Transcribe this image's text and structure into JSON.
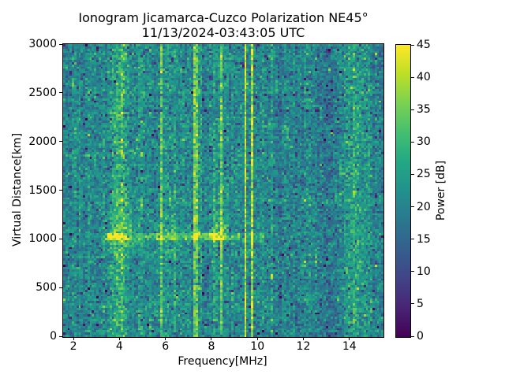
{
  "chart_data": {
    "type": "heatmap",
    "title": "Ionogram Jicamarca-Cuzco Polarization NE45°",
    "subtitle": "11/13/2024-03:43:05 UTC",
    "xlabel": "Frequency[MHz]",
    "ylabel": "Virtual Distance[km]",
    "x_range_mhz": [
      1.55,
      15.45
    ],
    "y_range_km": [
      0,
      3000
    ],
    "x_ticks": [
      2,
      4,
      6,
      8,
      10,
      12,
      14
    ],
    "y_ticks": [
      0,
      500,
      1000,
      1500,
      2000,
      2500,
      3000
    ],
    "colorbar": {
      "label": "Power [dB]",
      "range_db": [
        0,
        45
      ],
      "ticks": [
        0,
        5,
        10,
        15,
        20,
        25,
        30,
        35,
        40,
        45
      ],
      "colormap": "viridis",
      "colormap_stops": [
        [
          0.0,
          "#440154"
        ],
        [
          0.1,
          "#482475"
        ],
        [
          0.2,
          "#414487"
        ],
        [
          0.3,
          "#355f8d"
        ],
        [
          0.4,
          "#2a788e"
        ],
        [
          0.5,
          "#21918c"
        ],
        [
          0.6,
          "#22a884"
        ],
        [
          0.7,
          "#44bf70"
        ],
        [
          0.8,
          "#7ad151"
        ],
        [
          0.9,
          "#bddf26"
        ],
        [
          1.0,
          "#fde725"
        ]
      ]
    },
    "render_hints": {
      "grid_cols": 145,
      "grid_rows": 130,
      "legend_position": "right",
      "grid": "off"
    },
    "background_noise": {
      "mean_db": 21,
      "std_db": 4.2,
      "dark_speckle_prob": 0.05,
      "bright_speckle_prob": 0.012
    },
    "interference_lines_mhz": [
      {
        "f": 2.05,
        "boost_db": 3,
        "solid": false
      },
      {
        "f": 2.3,
        "boost_db": 3.5,
        "solid": false
      },
      {
        "f": 2.68,
        "boost_db": 4.5,
        "solid": false
      },
      {
        "f": 3.35,
        "boost_db": 4,
        "solid": false
      },
      {
        "f": 4.05,
        "boost_db": 4,
        "solid": false
      },
      {
        "f": 4.9,
        "boost_db": 5,
        "solid": false
      },
      {
        "f": 5.3,
        "boost_db": 3,
        "solid": false
      },
      {
        "f": 5.85,
        "boost_db": 10,
        "solid": true
      },
      {
        "f": 6.38,
        "boost_db": 4.5,
        "solid": false
      },
      {
        "f": 7.3,
        "boost_db": 15,
        "solid": true
      },
      {
        "f": 7.5,
        "boost_db": 7,
        "solid": false
      },
      {
        "f": 8.12,
        "boost_db": 6,
        "solid": false
      },
      {
        "f": 8.42,
        "boost_db": 14,
        "solid": true
      },
      {
        "f": 8.85,
        "boost_db": 5,
        "solid": false
      },
      {
        "f": 9.42,
        "boost_db": 20,
        "solid": true
      },
      {
        "f": 9.72,
        "boost_db": 19,
        "solid": true
      },
      {
        "f": 10.2,
        "boost_db": 3,
        "solid": false
      },
      {
        "f": 10.62,
        "boost_db": 6,
        "solid": false
      },
      {
        "f": 11.2,
        "boost_db": 3,
        "solid": false
      },
      {
        "f": 14.85,
        "boost_db": 3,
        "solid": false
      }
    ],
    "bright_bands_mhz": [
      {
        "center": 4.0,
        "sigma": 0.25,
        "boost_db": 9
      },
      {
        "center": 5.95,
        "sigma": 0.18,
        "boost_db": 5
      },
      {
        "center": 8.3,
        "sigma": 0.35,
        "boost_db": 2.5
      },
      {
        "center": 14.1,
        "sigma": 0.26,
        "boost_db": 6.5
      }
    ],
    "dark_regions_mhz": [
      {
        "f0": 1.55,
        "f1": 1.85,
        "delta_db": -1.5
      },
      {
        "f0": 10.9,
        "f1": 12.25,
        "delta_db": -1.2
      },
      {
        "f0": 12.25,
        "f1": 13.8,
        "delta_db": -2.6
      },
      {
        "f0": 14.55,
        "f1": 15.45,
        "delta_db": -0.8
      }
    ],
    "echo_trace": {
      "altitude_km": 1030,
      "half_width_km": 28,
      "f0_mhz": 3.0,
      "f1_mhz": 10.3,
      "boost_db": 7,
      "blobs": [
        {
          "f0": 3.4,
          "f1": 4.35,
          "boost_db": 15
        },
        {
          "f0": 4.35,
          "f1": 5.55,
          "boost_db": 4
        },
        {
          "f0": 5.55,
          "f1": 6.15,
          "boost_db": 9
        },
        {
          "f0": 6.15,
          "f1": 7.85,
          "boost_db": 5
        },
        {
          "f0": 7.85,
          "f1": 8.65,
          "boost_db": 15
        },
        {
          "f0": 8.65,
          "f1": 9.3,
          "boost_db": 4
        }
      ]
    },
    "spread_plumes": [
      {
        "f0": 3.6,
        "f1": 4.5,
        "alt0_km": 1060,
        "alt1_km": 1600,
        "origin_km": 1060,
        "decay_km": 260,
        "boost_db": 7
      },
      {
        "f0": 5.65,
        "f1": 6.5,
        "alt0_km": 1060,
        "alt1_km": 1420,
        "origin_km": 1060,
        "decay_km": 200,
        "boost_db": 5
      },
      {
        "f0": 7.9,
        "f1": 8.75,
        "alt0_km": 1060,
        "alt1_km": 1520,
        "origin_km": 1070,
        "decay_km": 230,
        "boost_db": 9
      },
      {
        "f0": 3.3,
        "f1": 4.7,
        "alt0_km": 840,
        "alt1_km": 1000,
        "origin_km": 1000,
        "decay_km": 90,
        "boost_db": 4.5
      }
    ]
  }
}
